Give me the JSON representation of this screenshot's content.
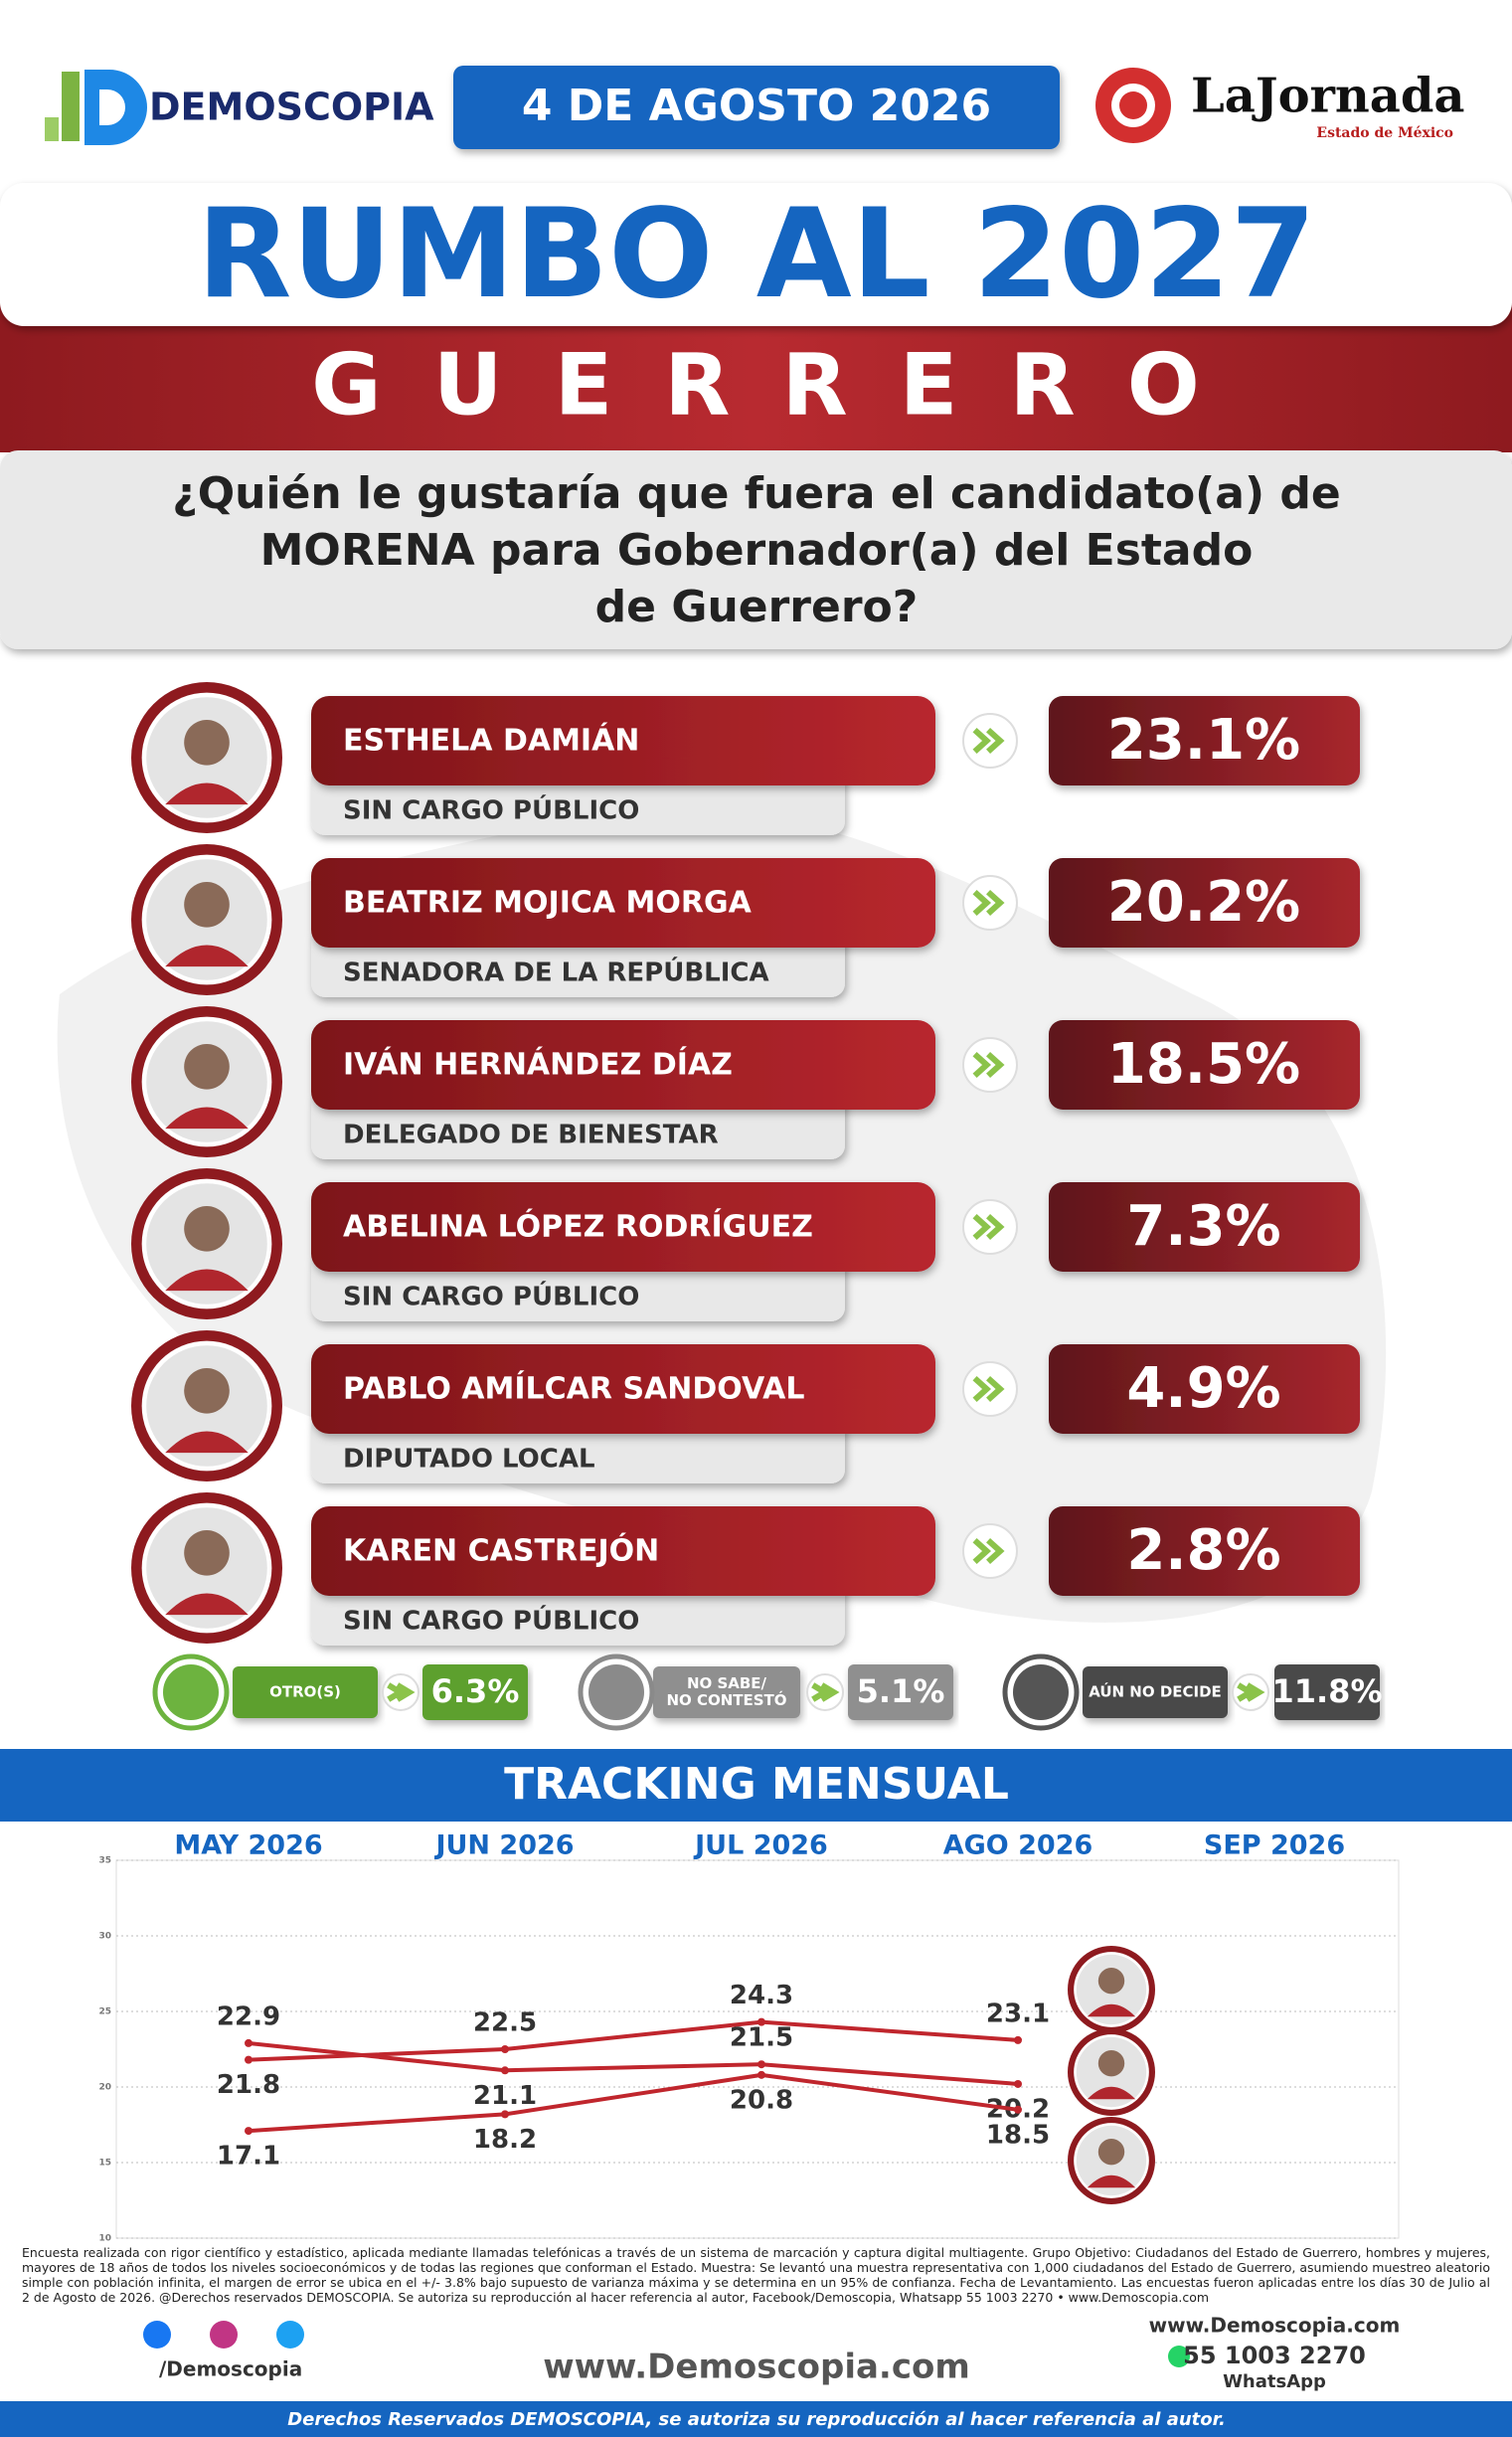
{
  "header": {
    "brand": "DEMOSCOPIA",
    "date": "4 DE AGOSTO 2026",
    "partner": "LaJornada",
    "partner_sub": "Estado de México"
  },
  "title": "RUMBO AL 2027",
  "state": "GUERRERO",
  "question": [
    "¿Quién le gustaría que fuera el candidato(a) de",
    "MORENA para Gobernador(a) del Estado",
    "de Guerrero?"
  ],
  "candidates": [
    {
      "name": "ESTHELA DAMIÁN",
      "role": "SIN CARGO PÚBLICO",
      "result": "23.1%"
    },
    {
      "name": "BEATRIZ MOJICA MORGA",
      "role": "SENADORA DE LA REPÚBLICA",
      "result": "20.2%"
    },
    {
      "name": "IVÁN HERNÁNDEZ DÍAZ",
      "role": "DELEGADO DE BIENESTAR",
      "result": "18.5%"
    },
    {
      "name": "ABELINA LÓPEZ RODRÍGUEZ",
      "role": "SIN CARGO PÚBLICO",
      "result": "7.3%"
    },
    {
      "name": "PABLO AMÍLCAR SANDOVAL",
      "role": "DIPUTADO LOCAL",
      "result": "4.9%"
    },
    {
      "name": "KAREN CASTREJÓN",
      "role": "SIN CARGO PÚBLICO",
      "result": "2.8%"
    }
  ],
  "others": [
    {
      "label": [
        "OTRO(S)"
      ],
      "result": "6.3%"
    },
    {
      "label": [
        "NO SABE/",
        "NO CONTESTÓ"
      ],
      "result": "5.1%"
    },
    {
      "label": [
        "AÚN NO DECIDE"
      ],
      "result": "11.8%"
    }
  ],
  "chart_data": {
    "type": "line",
    "title": "TRACKING MENSUAL",
    "categories": [
      "MAY 2026",
      "JUN 2026",
      "JUL 2026",
      "AGO 2026",
      "SEP 2026"
    ],
    "series": [
      {
        "color": "#c0262d",
        "values": [
          21.8,
          22.5,
          24.3,
          23.1,
          null
        ]
      },
      {
        "color": "#c0262d",
        "values": [
          22.9,
          21.1,
          21.5,
          20.2,
          null
        ]
      },
      {
        "color": "#c0262d",
        "values": [
          17.1,
          18.2,
          20.8,
          18.5,
          null
        ]
      }
    ],
    "ylim": [
      10,
      35
    ],
    "yticks": [
      10,
      15,
      20,
      25,
      30,
      35
    ],
    "grid": true
  },
  "footer": {
    "disclaimer": "Encuesta realizada con rigor científico y estadístico, aplicada mediante llamadas telefónicas a través de un sistema de marcación y captura digital multiagente. Grupo Objetivo: Ciudadanos del Estado de Guerrero, hombres y mujeres, mayores de 18 años de todos los niveles socioeconómicos y de todas las regiones que conforman el Estado. Muestra: Se levantó una muestra representativa con 1,000 ciudadanos del Estado de Guerrero, asumiendo muestreo aleatorio simple con población infinita, el margen de error se ubica en el +/- 3.8% bajo supuesto de varianza máxima y se determina en un 95% de confianza. Fecha de Levantamiento. Las encuestas fueron aplicadas entre los días 30 de Julio al 2 de Agosto de 2026. @Derechos reservados DEMOSCOPIA. Se autoriza su reproducción al hacer referencia al autor, Facebook/Demoscopia, Whatsapp 55 1003 2270 • www.Demoscopia.com",
    "social": "/Demoscopia",
    "website": "www.Demoscopia.com",
    "contact_web": "www.Demoscopia.com",
    "phone": "55 1003 2270",
    "whatsapp": "WhatsApp",
    "rights": "Derechos Reservados DEMOSCOPIA, se autoriza su reproducción al hacer referencia al autor."
  }
}
